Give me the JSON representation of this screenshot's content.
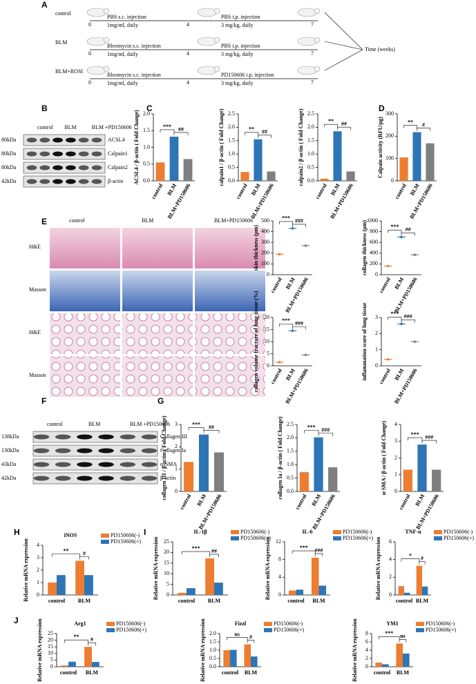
{
  "panel_labels": [
    "A",
    "B",
    "C",
    "D",
    "E",
    "F",
    "G",
    "H",
    "I",
    "J"
  ],
  "schedule": {
    "rows": [
      {
        "group": "control",
        "sc": "PBS s.c. injection",
        "sc_dose": "1mg/ml, daily",
        "ip": "PBS i.p. injection",
        "ip_dose": "3 mg/kg,  daily",
        "ticks": [
          "0",
          "4",
          "7"
        ]
      },
      {
        "group": "BLM",
        "sc": "Bleomycin s.c. injection",
        "sc_dose": "1mg/ml, daily",
        "ip": "PBS i.p. injection",
        "ip_dose": "3 mg/kg,  daily",
        "ticks": [
          "0",
          "4",
          "7"
        ]
      },
      {
        "group": "BLM+ROSI",
        "sc": "Bleomycin s.c. injection",
        "sc_dose": "1mg/ml, daily",
        "ip": "PD150606 i.p. injection",
        "ip_dose": "3 mg/kg,  daily",
        "ticks": [
          "0",
          "4",
          "7"
        ]
      }
    ],
    "axis_label": "Time (weeks)"
  },
  "blot_b": {
    "groups": [
      "control",
      "BLM",
      "BLM +PD150606"
    ],
    "rows": [
      {
        "size": "80kDa",
        "protein": "ACSL4"
      },
      {
        "size": "80kDa",
        "protein": "Calpain1"
      },
      {
        "size": "80kDa",
        "protein": "Calpain2"
      },
      {
        "size": "42kDa",
        "protein": "β-actin"
      }
    ]
  },
  "histology": {
    "columns": [
      "control",
      "BLM",
      "BLM+PD150606"
    ],
    "rows": [
      "H&E",
      "Masson",
      "H&E",
      "Masson"
    ]
  },
  "blot_f": {
    "groups": [
      "control",
      "BLM",
      "BLM +PD150606"
    ],
    "rows": [
      {
        "size": "138kDa",
        "protein": "Collagen III"
      },
      {
        "size": "130kDa",
        "protein": "Collagen Ia"
      },
      {
        "size": "43kDa",
        "protein": "α-SMA"
      },
      {
        "size": "42kDa",
        "protein": "β-actin"
      }
    ]
  },
  "chart_data": [
    {
      "type": "bar",
      "ylabel": "ACSL4 / β-actin ( Fold Change)",
      "categories": [
        "control",
        "BLM",
        "BLM+PD150606"
      ],
      "values": [
        0.55,
        1.32,
        0.65
      ],
      "colors": [
        "#ed7d31",
        "#2e75b6",
        "#7f7f7f"
      ],
      "ylim": [
        0,
        2
      ],
      "yticks": [
        {
          "value": 0,
          "label": "0.0"
        },
        0.5,
        {
          "value": 1,
          "label": "1.0"
        },
        1.5,
        {
          "value": 2,
          "label": "2.0"
        }
      ],
      "annotations": [
        "***",
        "##"
      ]
    },
    {
      "type": "bar",
      "ylabel": "calpain1 / β-actin ( Fold Change)",
      "categories": [
        "control",
        "BLM",
        "BLM+PD150606"
      ],
      "values": [
        0.33,
        1.55,
        0.35
      ],
      "colors": [
        "#ed7d31",
        "#2e75b6",
        "#7f7f7f"
      ],
      "ylim": [
        0,
        2.5
      ],
      "yticks": [
        {
          "value": 0,
          "label": "0.0"
        },
        0.5,
        {
          "value": 1,
          "label": "1.0"
        },
        1.5,
        {
          "value": 2,
          "label": "2.0"
        },
        2.5
      ],
      "annotations": [
        "**",
        "##"
      ]
    },
    {
      "type": "bar",
      "ylabel": "calpain2 / β-actin ( Fold Change)",
      "categories": [
        "control",
        "BLM",
        "BLM+PD150606"
      ],
      "values": [
        0.08,
        1.85,
        0.35
      ],
      "colors": [
        "#ed7d31",
        "#2e75b6",
        "#7f7f7f"
      ],
      "ylim": [
        0,
        2.5
      ],
      "yticks": [
        {
          "value": 0,
          "label": "0.0"
        },
        0.5,
        {
          "value": 1,
          "label": "1.0"
        },
        1.5,
        {
          "value": 2,
          "label": "2.0"
        },
        2.5
      ],
      "annotations": [
        "**",
        "##"
      ]
    },
    {
      "type": "bar",
      "ylabel": "Calpain activity (RFU/μg)",
      "categories": [
        "control",
        "BLM",
        "BLM+PD150606"
      ],
      "values": [
        105,
        218,
        168
      ],
      "colors": [
        "#ed7d31",
        "#2e75b6",
        "#7f7f7f"
      ],
      "ylim": [
        0,
        300
      ],
      "yticks": [
        0,
        100,
        200,
        300
      ],
      "annotations": [
        "**",
        "#"
      ]
    },
    {
      "type": "dot",
      "ylabel": "skin thickness (μm)",
      "categories": [
        "control",
        "BLM",
        "BLM+PD150606"
      ],
      "values": [
        190,
        430,
        270
      ],
      "colors": [
        "#ed7d31",
        "#2e75b6",
        "#7f7f7f"
      ],
      "ylim": [
        0,
        500
      ],
      "yticks": [
        0,
        100,
        200,
        300,
        400,
        500
      ],
      "annotations": [
        "***",
        "###"
      ]
    },
    {
      "type": "dot",
      "ylabel": "collagen thickness (μm)",
      "categories": [
        "control",
        "BLM",
        "BLM+PD150606"
      ],
      "values": [
        160,
        700,
        370
      ],
      "colors": [
        "#ed7d31",
        "#2e75b6",
        "#7f7f7f"
      ],
      "ylim": [
        0,
        1000
      ],
      "yticks": [
        0,
        200,
        400,
        600,
        800,
        1000
      ],
      "annotations": [
        "***",
        "##"
      ]
    },
    {
      "type": "dot",
      "ylabel": "collagen volume fracture of lung tissue (%)",
      "categories": [
        "control",
        "BLM",
        "BLM+PD150606"
      ],
      "values": [
        1.5,
        14.5,
        4.5
      ],
      "colors": [
        "#ed7d31",
        "#2e75b6",
        "#7f7f7f"
      ],
      "ylim": [
        0,
        20
      ],
      "yticks": [
        0,
        5,
        10,
        15,
        20
      ],
      "annotations": [
        "***",
        "###"
      ]
    },
    {
      "type": "dot",
      "ylabel": "inflammation score of lung tissue",
      "categories": [
        "control",
        "BLM",
        "BLM+PD150606"
      ],
      "values": [
        0.4,
        2.6,
        1.5
      ],
      "colors": [
        "#ed7d31",
        "#2e75b6",
        "#7f7f7f"
      ],
      "ylim": [
        0,
        3
      ],
      "yticks": [
        0,
        1,
        2,
        3
      ],
      "annotations": [
        "***",
        "###"
      ]
    },
    {
      "type": "bar",
      "ylabel": "collagen III / β-actin ( Fold Change)",
      "categories": [
        "control",
        "BLM",
        "BLM+PD150606"
      ],
      "values": [
        1.32,
        2.55,
        1.75
      ],
      "colors": [
        "#ed7d31",
        "#2e75b6",
        "#7f7f7f"
      ],
      "ylim": [
        0,
        3
      ],
      "yticks": [
        0,
        1,
        2,
        3
      ],
      "annotations": [
        "***",
        "##"
      ]
    },
    {
      "type": "bar",
      "ylabel": "collagen Ia / β-actin ( Fold Change)",
      "categories": [
        "control",
        "BLM",
        "BLM+PD150606"
      ],
      "values": [
        0.72,
        2.02,
        0.9
      ],
      "colors": [
        "#ed7d31",
        "#2e75b6",
        "#7f7f7f"
      ],
      "ylim": [
        0,
        2.5
      ],
      "yticks": [
        {
          "value": 0,
          "label": "0.0"
        },
        0.5,
        {
          "value": 1,
          "label": "1.0"
        },
        1.5,
        {
          "value": 2,
          "label": "2.0"
        },
        2.5
      ],
      "annotations": [
        "***",
        "###"
      ]
    },
    {
      "type": "bar",
      "ylabel": "α-SMA / β-actin ( Fold Change)",
      "categories": [
        "control",
        "BLM",
        "BLM+PD150606"
      ],
      "values": [
        1.3,
        2.8,
        1.3
      ],
      "colors": [
        "#ed7d31",
        "#2e75b6",
        "#7f7f7f"
      ],
      "ylim": [
        0,
        4
      ],
      "yticks": [
        0,
        1,
        2,
        3,
        4
      ],
      "annotations": [
        "***",
        "###"
      ]
    },
    {
      "type": "bar",
      "title": "iNOS",
      "ylabel": "Relative mRNA expression",
      "categories": [
        "control",
        "BLM"
      ],
      "series": [
        {
          "name": "PD150606(-)",
          "color": "#ed7d31",
          "values": [
            1.0,
            2.75
          ]
        },
        {
          "name": "PD150606(+)",
          "color": "#2e75b6",
          "values": [
            1.6,
            1.6
          ]
        }
      ],
      "ylim": [
        0,
        4
      ],
      "yticks": [
        0,
        1,
        2,
        3,
        4
      ],
      "annotations": [
        "**",
        "#"
      ]
    },
    {
      "type": "bar",
      "title": "IL-1β",
      "ylabel": "Relative mRNA expression",
      "categories": [
        "control",
        "BLM"
      ],
      "series": [
        {
          "name": "PD150606(-)",
          "color": "#ed7d31",
          "values": [
            1.0,
            17.2
          ]
        },
        {
          "name": "PD150606(+)",
          "color": "#2e75b6",
          "values": [
            3.2,
            5.8
          ]
        }
      ],
      "ylim": [
        0,
        25
      ],
      "yticks": [
        0,
        5,
        10,
        15,
        20,
        25
      ],
      "annotations": [
        "***",
        "##"
      ]
    },
    {
      "type": "bar",
      "title": "IL-6",
      "ylabel": "Relative mRNA expression",
      "categories": [
        "control",
        "BLM"
      ],
      "series": [
        {
          "name": "PD150606(-)",
          "color": "#ed7d31",
          "values": [
            1.0,
            8.4
          ]
        },
        {
          "name": "PD150606(+)",
          "color": "#2e75b6",
          "values": [
            1.2,
            2.1
          ]
        }
      ],
      "ylim": [
        0,
        12
      ],
      "yticks": [
        0,
        4,
        8,
        12
      ],
      "annotations": [
        "***",
        "###"
      ]
    },
    {
      "type": "bar",
      "title": "TNF-α",
      "ylabel": "Relative mRNA expression",
      "categories": [
        "control",
        "BLM"
      ],
      "series": [
        {
          "name": "PD150606(-)",
          "color": "#ed7d31",
          "values": [
            1.0,
            3.3
          ]
        },
        {
          "name": "PD150606(+)",
          "color": "#2e75b6",
          "values": [
            0.25,
            0.95
          ]
        }
      ],
      "ylim": [
        0,
        6
      ],
      "yticks": [
        0,
        2,
        4,
        6
      ],
      "annotations": [
        "*",
        "#"
      ]
    },
    {
      "type": "bar",
      "title": "Arg1",
      "ylabel": "Relative mRNA expression",
      "categories": [
        "control",
        "BLM"
      ],
      "series": [
        {
          "name": "PD150606(-)",
          "color": "#ed7d31",
          "values": [
            1.0,
            15.0
          ]
        },
        {
          "name": "PD150606(+)",
          "color": "#2e75b6",
          "values": [
            3.8,
            3.6
          ]
        }
      ],
      "ylim": [
        0,
        25
      ],
      "yticks": [
        0,
        5,
        10,
        15,
        20,
        25
      ],
      "annotations": [
        "**",
        "#"
      ]
    },
    {
      "type": "bar",
      "title": "Fizzl",
      "ylabel": "Relative mRNA expression",
      "categories": [
        "control",
        "BLM"
      ],
      "series": [
        {
          "name": "PD150606(-)",
          "color": "#ed7d31",
          "values": [
            1.0,
            1.35
          ]
        },
        {
          "name": "PD150606(+)",
          "color": "#2e75b6",
          "values": [
            1.02,
            0.62
          ]
        }
      ],
      "ylim": [
        0,
        2
      ],
      "yticks": [
        {
          "value": 0,
          "label": "0.0"
        },
        0.5,
        {
          "value": 1,
          "label": "1.0"
        },
        1.5,
        {
          "value": 2,
          "label": "2.0"
        }
      ],
      "annotations": [
        "ns",
        "#"
      ]
    },
    {
      "type": "bar",
      "title": "YM1",
      "ylabel": "Relative mRNA expression",
      "categories": [
        "control",
        "BLM"
      ],
      "series": [
        {
          "name": "PD150606(-)",
          "color": "#ed7d31",
          "values": [
            1.0,
            5.6
          ]
        },
        {
          "name": "PD150606(+)",
          "color": "#2e75b6",
          "values": [
            0.6,
            3.2
          ]
        }
      ],
      "ylim": [
        0,
        8
      ],
      "yticks": [
        0,
        2,
        4,
        6,
        8
      ],
      "annotations": [
        "***",
        "ns"
      ]
    }
  ]
}
